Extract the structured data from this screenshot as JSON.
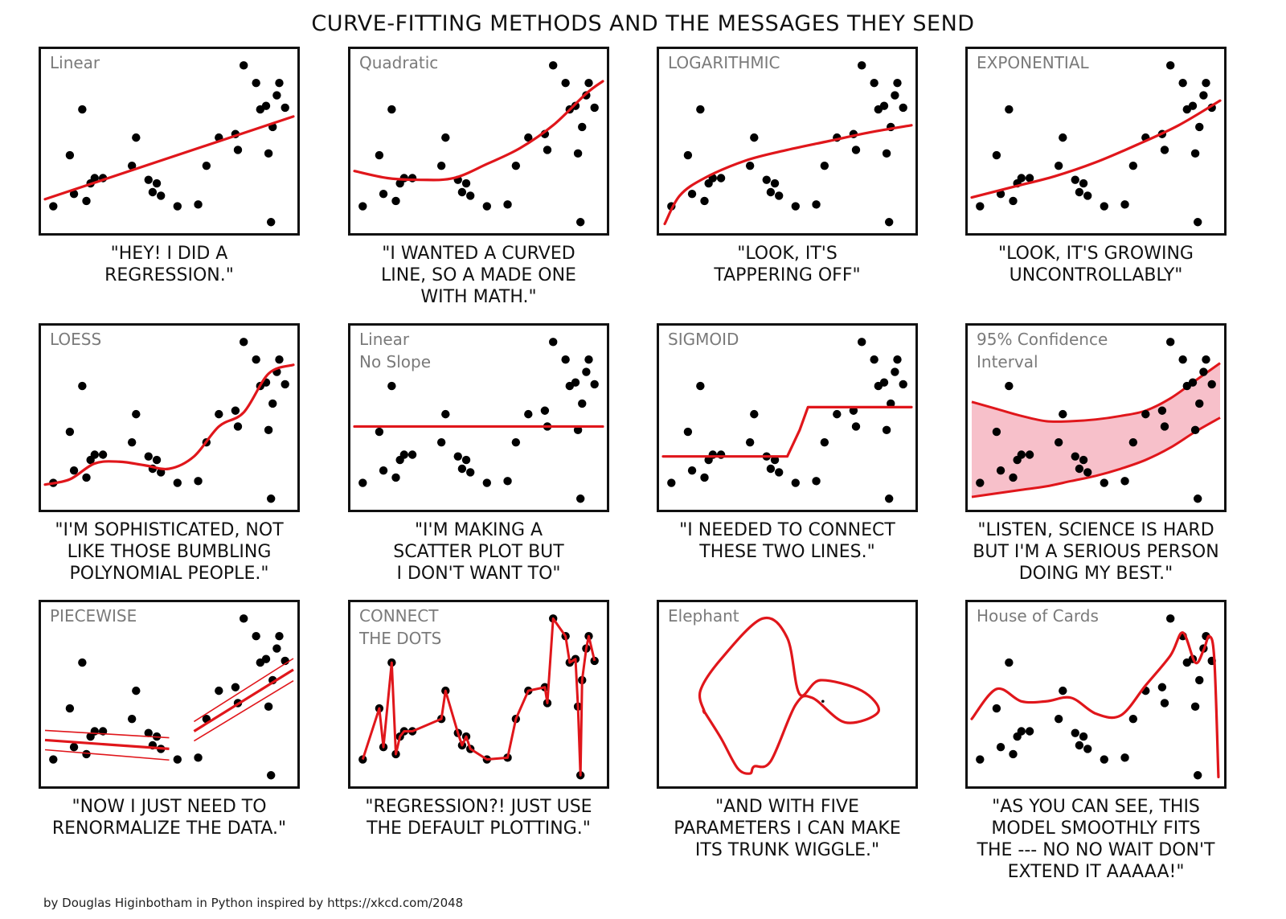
{
  "title": "CURVE-FITTING METHODS AND THE MESSAGES THEY SEND",
  "credit": "by Douglas Higinbotham in Python inspired by https://xkcd.com/2048",
  "colors": {
    "fit": "#e0161b",
    "band": "#f7c0ca",
    "point": "#000000",
    "label": "#7a7a7a"
  },
  "panels": [
    {
      "label": "Linear",
      "caption": "\"HEY!  I DID A\nREGRESSION.\""
    },
    {
      "label": "Quadratic",
      "caption": "\"I WANTED A CURVED\nLINE, SO A MADE ONE\nWITH MATH.\""
    },
    {
      "label": "LOGARITHMIC",
      "caption": "\"LOOK, IT'S\nTAPPERING OFF\""
    },
    {
      "label": "EXPONENTIAL",
      "caption": "\"LOOK, IT'S GROWING\nUNCONTROLLABLY\""
    },
    {
      "label": "LOESS",
      "caption": "\"I'M SOPHISTICATED, NOT\nLIKE THOSE BUMBLING\nPOLYNOMIAL PEOPLE.\""
    },
    {
      "label": "Linear\nNo Slope",
      "caption": "\"I'M MAKING A\nSCATTER PLOT BUT\nI DON'T WANT TO\""
    },
    {
      "label": "SIGMOID",
      "caption": "\"I NEEDED TO CONNECT\nTHESE TWO LINES.\""
    },
    {
      "label": "95% Confidence\nInterval",
      "caption": "\"LISTEN, SCIENCE IS HARD\nBUT I'M A SERIOUS PERSON\nDOING MY BEST.\""
    },
    {
      "label": "PIECEWISE",
      "caption": "\"NOW I JUST NEED TO\nRENORMALIZE THE DATA.\""
    },
    {
      "label": "CONNECT\nTHE DOTS",
      "caption": "\"REGRESSION?!  JUST USE\nTHE DEFAULT PLOTTING.\""
    },
    {
      "label": "Elephant",
      "caption": "\"AND WITH FIVE\nPARAMETERS I CAN MAKE\nITS TRUNK WIGGLE.\""
    },
    {
      "label": "House of Cards",
      "caption": "\"AS YOU CAN SEE, THIS\nMODEL SMOOTHLY FITS\nTHE --- NO NO WAIT DON'T\nEXTEND IT AAAAA!\""
    }
  ],
  "chart_data": {
    "type": "scatter",
    "title": "CURVE-FITTING METHODS AND THE MESSAGES THEY SEND",
    "xlim": [
      0,
      30
    ],
    "ylim": [
      0,
      10
    ],
    "grid": false,
    "points": [
      [
        1,
        1.3
      ],
      [
        3,
        4.2
      ],
      [
        3.5,
        2.0
      ],
      [
        4.5,
        6.8
      ],
      [
        5,
        1.6
      ],
      [
        5.5,
        2.6
      ],
      [
        6,
        2.9
      ],
      [
        7,
        2.9
      ],
      [
        10.5,
        3.6
      ],
      [
        11,
        5.2
      ],
      [
        12.5,
        2.8
      ],
      [
        13,
        2.1
      ],
      [
        13.5,
        2.6
      ],
      [
        14,
        1.9
      ],
      [
        16,
        1.3
      ],
      [
        18.5,
        1.4
      ],
      [
        19.5,
        3.6
      ],
      [
        21,
        5.2
      ],
      [
        23,
        5.4
      ],
      [
        23.3,
        4.5
      ],
      [
        24,
        9.3
      ],
      [
        25.5,
        8.3
      ],
      [
        26,
        6.8
      ],
      [
        26.7,
        7.0
      ],
      [
        27,
        4.3
      ],
      [
        27.3,
        0.4
      ],
      [
        27.5,
        5.8
      ],
      [
        28,
        7.6
      ],
      [
        28.3,
        8.3
      ],
      [
        29,
        6.9
      ]
    ],
    "fits": [
      {
        "name": "Linear",
        "x": [
          0,
          30
        ],
        "y": [
          1.7,
          6.4
        ]
      },
      {
        "name": "Quadratic",
        "x": [
          0,
          4,
          8,
          12,
          16,
          20,
          24,
          28,
          30
        ],
        "y": [
          3.3,
          2.9,
          2.8,
          2.9,
          3.7,
          4.6,
          5.9,
          7.7,
          8.4
        ]
      },
      {
        "name": "LOGARITHMIC",
        "x": [
          0.2,
          2,
          5,
          10,
          15,
          20,
          25,
          30
        ],
        "y": [
          0.3,
          1.9,
          2.9,
          3.9,
          4.5,
          5.0,
          5.5,
          5.9
        ]
      },
      {
        "name": "EXPONENTIAL",
        "x": [
          0,
          5,
          10,
          15,
          20,
          25,
          30
        ],
        "y": [
          1.8,
          2.4,
          3.0,
          3.8,
          4.8,
          5.9,
          7.3
        ]
      },
      {
        "name": "LOESS",
        "x": [
          0,
          3,
          6,
          9,
          12,
          15,
          18,
          21,
          24,
          27,
          30
        ],
        "y": [
          1.2,
          1.5,
          2.4,
          2.5,
          2.3,
          2.1,
          2.8,
          4.5,
          5.3,
          7.5,
          8.0
        ]
      },
      {
        "name": "Linear No Slope",
        "x": [
          0,
          30
        ],
        "y": [
          4.5,
          4.5
        ]
      },
      {
        "name": "SIGMOID",
        "x": [
          0,
          15,
          16.5,
          17.5,
          30
        ],
        "y": [
          2.8,
          2.8,
          4.3,
          5.6,
          5.6
        ]
      },
      {
        "name": "95% Confidence Interval",
        "x": [
          0,
          3,
          6,
          9,
          12,
          15,
          18,
          21,
          24,
          27,
          30
        ],
        "y": [
          5.9,
          5.5,
          5.1,
          4.8,
          4.8,
          4.9,
          5.1,
          5.4,
          6.1,
          7.1,
          8.1
        ],
        "y_upper": [
          5.9,
          5.5,
          5.1,
          4.8,
          4.8,
          4.9,
          5.1,
          5.4,
          6.1,
          7.1,
          8.1
        ],
        "y_lower": [
          0.5,
          0.7,
          0.9,
          1.1,
          1.4,
          1.7,
          2.1,
          2.6,
          3.3,
          4.2,
          5.0
        ]
      },
      {
        "name": "PIECEWISE",
        "x": [
          0,
          15,
          18,
          30
        ],
        "y": [
          2.4,
          1.9,
          2.9,
          6.4
        ],
        "break_after": 1
      },
      {
        "name": "CONNECT THE DOTS",
        "x": "points"
      },
      {
        "name": "Elephant",
        "x": [
          5,
          7,
          9,
          10.5,
          11,
          13,
          16,
          18,
          22,
          26,
          24,
          19,
          16.5,
          15,
          12,
          7,
          4.5,
          5
        ],
        "y": [
          4.0,
          2.5,
          0.8,
          0.5,
          0.9,
          1.2,
          4.4,
          4.8,
          3.4,
          4.0,
          5.2,
          5.8,
          5.0,
          8.2,
          9.3,
          7.0,
          5.2,
          4.0
        ],
        "closed": true
      },
      {
        "name": "House of Cards",
        "x": [
          0,
          3,
          6,
          9,
          12,
          15,
          18,
          21,
          24,
          25.5,
          27,
          28,
          28.7,
          29.3,
          29.8
        ],
        "y": [
          3.6,
          5.3,
          4.6,
          4.6,
          4.8,
          3.9,
          3.8,
          5.5,
          7.2,
          8.5,
          6.8,
          7.5,
          8.3,
          7.0,
          0.3
        ]
      }
    ]
  }
}
